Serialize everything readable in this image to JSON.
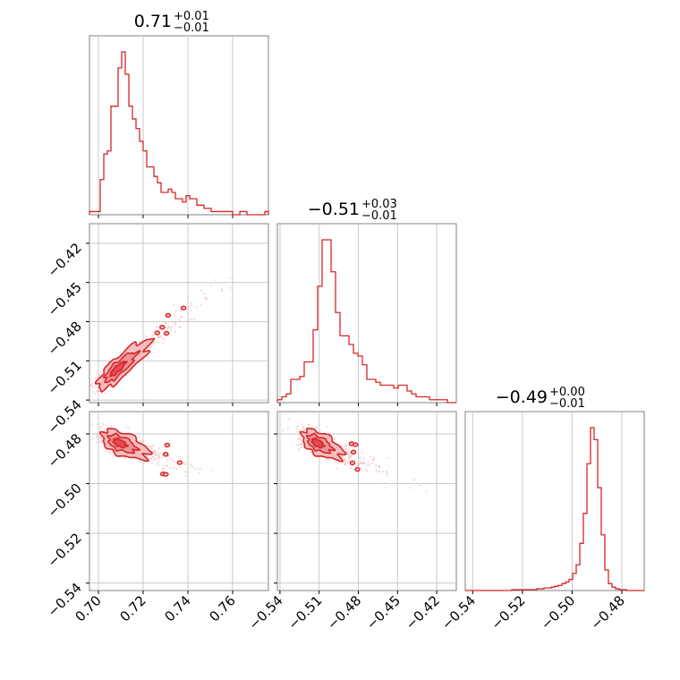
{
  "chart_data": {
    "type": "corner",
    "color": "#d62728",
    "fill_light": "#f4b6b8",
    "fill_mid": "#e66d73",
    "parameters": [
      {
        "median": "0.71",
        "plus": "+0.01",
        "minus": "−0.01"
      },
      {
        "median": "−0.51",
        "plus": "+0.03",
        "minus": "−0.01"
      },
      {
        "median": "−0.49",
        "plus": "+0.00",
        "minus": "−0.01"
      }
    ],
    "axes": [
      {
        "range": [
          0.696,
          0.776
        ],
        "ticks": [
          0.7,
          0.72,
          0.74,
          0.76
        ],
        "tick_labels": [
          "0.70",
          "0.72",
          "0.74",
          "0.76"
        ]
      },
      {
        "range": [
          -0.542,
          -0.405
        ],
        "ticks": [
          -0.54,
          -0.51,
          -0.48,
          -0.45,
          -0.42
        ],
        "tick_labels": [
          "−0.54",
          "−0.51",
          "−0.48",
          "−0.45",
          "−0.42"
        ]
      },
      {
        "range": [
          -0.543,
          -0.471
        ],
        "ticks": [
          -0.54,
          -0.52,
          -0.5,
          -0.48
        ],
        "tick_labels": [
          "−0.54",
          "−0.52",
          "−0.50",
          "−0.48"
        ]
      }
    ],
    "histograms": [
      {
        "param": 0,
        "bin_start": 0.696,
        "bin_end": 0.776,
        "counts": [
          1,
          1,
          1,
          11,
          19,
          20,
          34,
          34,
          46,
          51,
          44,
          34,
          30,
          27,
          23,
          20,
          15,
          15,
          12,
          10,
          7,
          7,
          8,
          7,
          5,
          5,
          4,
          6,
          5,
          5,
          3,
          3,
          2,
          2,
          1,
          1,
          1,
          1,
          1,
          1,
          0,
          0,
          1,
          1,
          0,
          0,
          0,
          0,
          0,
          1
        ]
      },
      {
        "param": 1,
        "bin_start": -0.542,
        "bin_end": -0.405,
        "counts": [
          1,
          2,
          3,
          8,
          8,
          9,
          14,
          14,
          25,
          40,
          56,
          56,
          45,
          31,
          23,
          23,
          20,
          17,
          16,
          13,
          8,
          8,
          7,
          6,
          6,
          6,
          5,
          6,
          6,
          4,
          3,
          2,
          2,
          2,
          1,
          1,
          1,
          1,
          0,
          0
        ]
      },
      {
        "param": 2,
        "bin_start": -0.543,
        "bin_end": -0.471,
        "counts": [
          0,
          0,
          0,
          0,
          0,
          0,
          0,
          0,
          0,
          0,
          0,
          0,
          0,
          1,
          1,
          1,
          1,
          1,
          1,
          1,
          2,
          2,
          3,
          3,
          4,
          5,
          6,
          8,
          10,
          13,
          20,
          30,
          55,
          90,
          148,
          190,
          176,
          120,
          65,
          24,
          8,
          4,
          2,
          1,
          1,
          0,
          0,
          0,
          0,
          0
        ]
      }
    ],
    "contour_pairs": [
      {
        "x_param": 0,
        "y_param": 1,
        "center": [
          0.708,
          -0.517
        ],
        "spread_x": 0.0045,
        "spread_y": 0.005,
        "slope": 1.36
      },
      {
        "x_param": 0,
        "y_param": 2,
        "center": [
          0.709,
          -0.4835
        ],
        "spread_x": 0.004,
        "spread_y": 0.0025,
        "slope": -0.32
      },
      {
        "x_param": 1,
        "y_param": 2,
        "center": [
          -0.512,
          -0.4835
        ],
        "spread_x": 0.006,
        "spread_y": 0.0025,
        "slope": -0.22
      }
    ]
  }
}
